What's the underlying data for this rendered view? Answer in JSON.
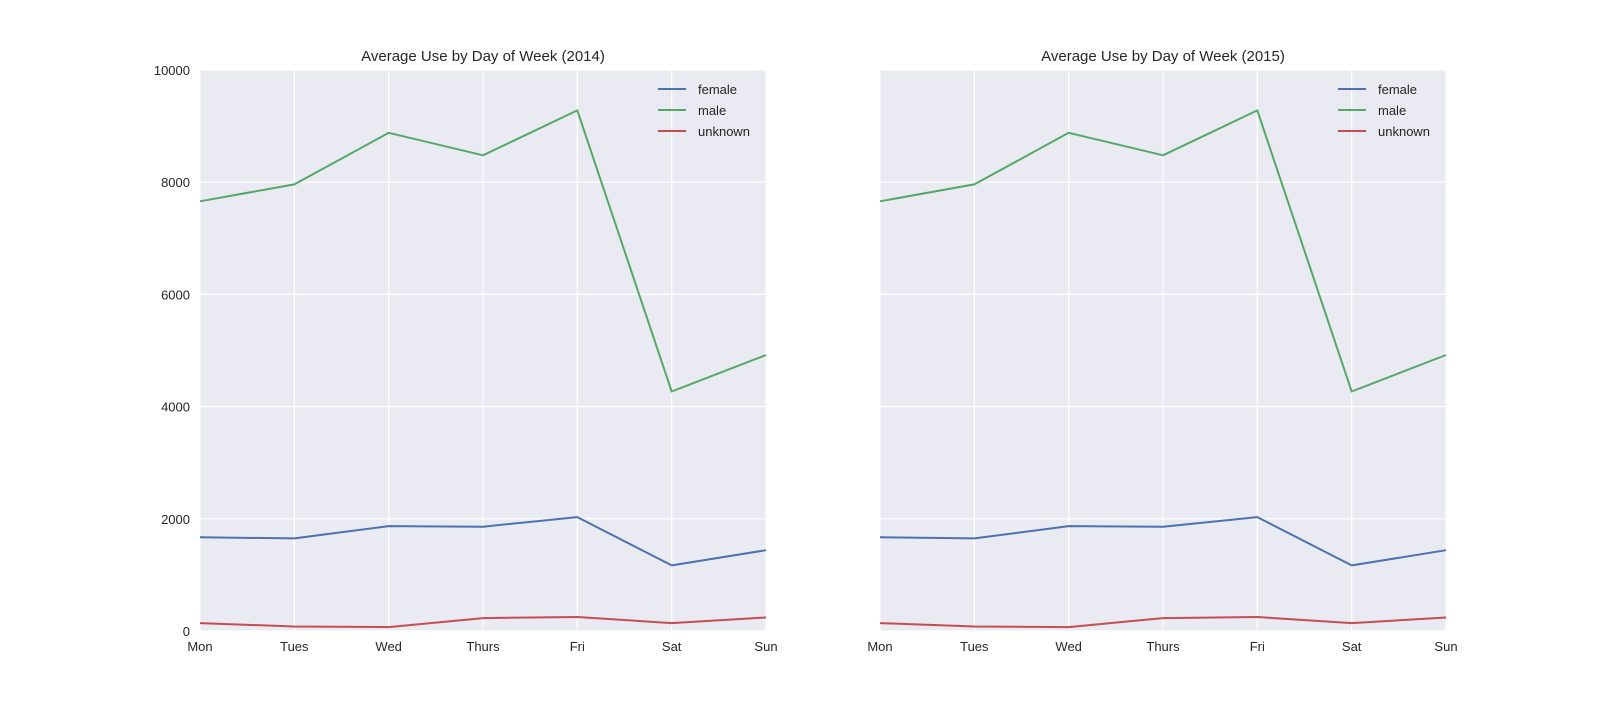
{
  "chart_data": [
    {
      "type": "line",
      "title": "Average Use by Day of Week (2014)",
      "xlabel": "",
      "ylabel": "",
      "categories": [
        "Mon",
        "Tues",
        "Wed",
        "Thurs",
        "Fri",
        "Sat",
        "Sun"
      ],
      "ylim": [
        0,
        10000
      ],
      "yticks": [
        0,
        2000,
        4000,
        6000,
        8000,
        10000
      ],
      "grid": true,
      "legend_position": "top-right",
      "series": [
        {
          "name": "female",
          "color": "#4c72b0",
          "values": [
            1670,
            1650,
            1870,
            1860,
            2030,
            1170,
            1440
          ]
        },
        {
          "name": "male",
          "color": "#55a868",
          "values": [
            7660,
            7960,
            8880,
            8480,
            9280,
            4270,
            4920
          ]
        },
        {
          "name": "unknown",
          "color": "#c44e52",
          "values": [
            140,
            80,
            70,
            230,
            250,
            140,
            240
          ]
        }
      ]
    },
    {
      "type": "line",
      "title": "Average Use by Day of Week (2015)",
      "xlabel": "",
      "ylabel": "",
      "categories": [
        "Mon",
        "Tues",
        "Wed",
        "Thurs",
        "Fri",
        "Sat",
        "Sun"
      ],
      "ylim": [
        0,
        10000
      ],
      "yticks": [],
      "grid": true,
      "legend_position": "top-right",
      "series": [
        {
          "name": "female",
          "color": "#4c72b0",
          "values": [
            1670,
            1650,
            1870,
            1860,
            2030,
            1170,
            1440
          ]
        },
        {
          "name": "male",
          "color": "#55a868",
          "values": [
            7660,
            7960,
            8880,
            8480,
            9280,
            4270,
            4920
          ]
        },
        {
          "name": "unknown",
          "color": "#c44e52",
          "values": [
            140,
            80,
            70,
            230,
            250,
            140,
            240
          ]
        }
      ]
    }
  ],
  "style": {
    "plot_background": "#eaeaf2",
    "grid_color": "#ffffff",
    "text_color": "#262626"
  }
}
